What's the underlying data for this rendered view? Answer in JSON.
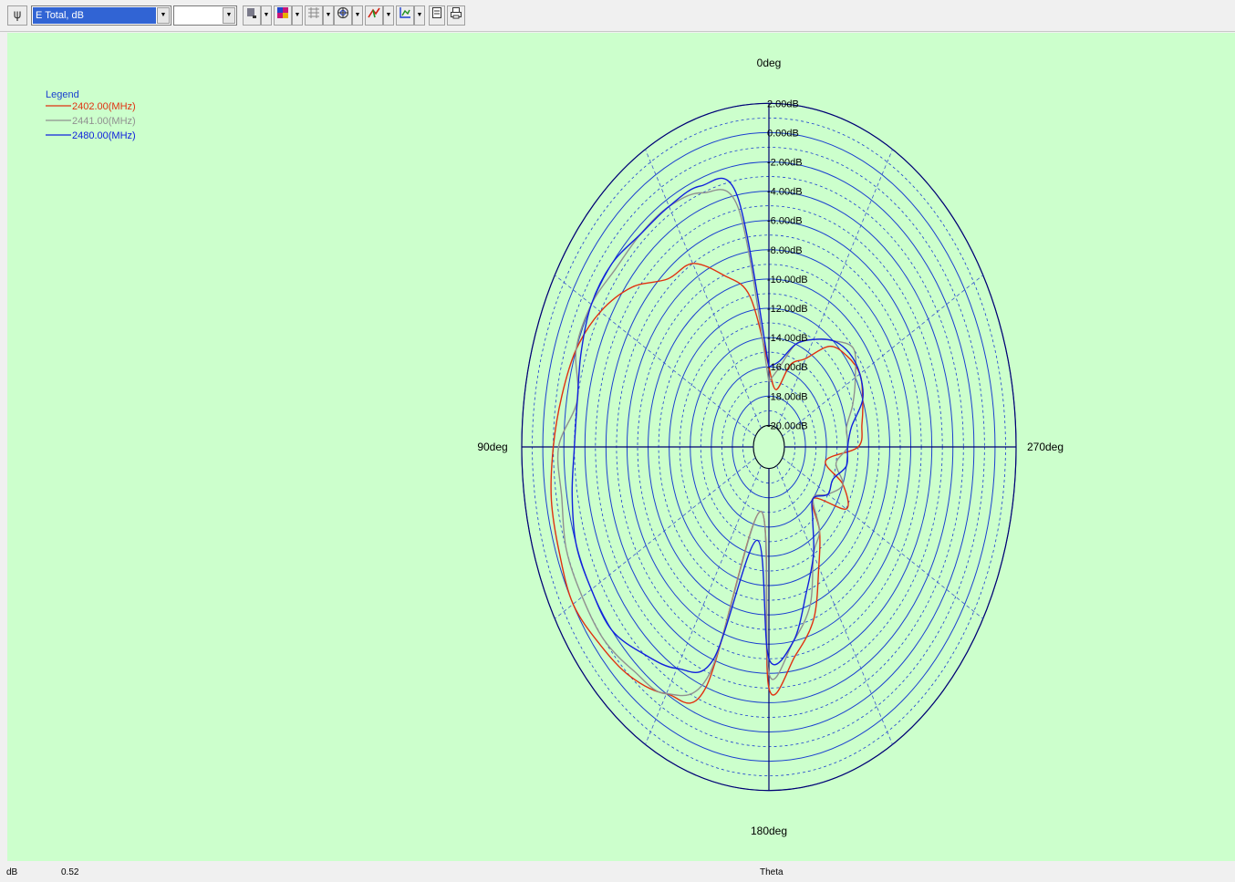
{
  "toolbar": {
    "quantity_select": {
      "value": "E Total, dB"
    },
    "secondary_select": {
      "value": ""
    },
    "buttons": [
      {
        "name": "plot-settings-icon"
      },
      {
        "name": "trace-style-icon"
      },
      {
        "name": "color-map-icon"
      },
      {
        "name": "grid-icon"
      },
      {
        "name": "polar-icon"
      },
      {
        "name": "marker-icon"
      },
      {
        "name": "axis-icon"
      },
      {
        "name": "copy-icon"
      },
      {
        "name": "print-icon"
      }
    ]
  },
  "statusbar": {
    "unit": "dB",
    "value": "0.52",
    "axis": "Theta"
  },
  "chart_data": {
    "type": "polar-line",
    "title": "",
    "radial_axis": {
      "unit": "dB",
      "range": [
        -20,
        2
      ],
      "tick_values": [
        2,
        0,
        -2,
        -4,
        -6,
        -8,
        -10,
        -12,
        -14,
        -16,
        -18,
        -20
      ],
      "tick_labels": [
        "2.00dB",
        "0.00dB",
        "-2.00dB",
        "-4.00dB",
        "-6.00dB",
        "-8.00dB",
        "-10.00dB",
        "-12.00dB",
        "-14.00dB",
        "-16.00dB",
        "-18.00dB",
        "-20.00dB"
      ]
    },
    "angular_axis": {
      "direction": "counterclockwise",
      "zero_at": "top",
      "labels": [
        {
          "deg": 0,
          "text": "0deg"
        },
        {
          "deg": 90,
          "text": "90deg"
        },
        {
          "deg": 180,
          "text": "180deg"
        },
        {
          "deg": 270,
          "text": "270deg"
        }
      ],
      "grid_spokes_every_deg": 30
    },
    "grid": true,
    "legend": {
      "title": "Legend",
      "position": "top-left"
    },
    "theta_deg": [
      0,
      10,
      20,
      30,
      40,
      50,
      60,
      70,
      80,
      90,
      100,
      110,
      120,
      130,
      140,
      150,
      160,
      170,
      180,
      190,
      200,
      210,
      220,
      230,
      240,
      250,
      260,
      270,
      280,
      290,
      300,
      310,
      320,
      330,
      340,
      350,
      360
    ],
    "series": [
      {
        "name": "2402.00(MHz)",
        "color": "#e03010",
        "r_db": [
          -16,
          -11,
          -9,
          -7,
          -6.5,
          -4.5,
          -3,
          -2,
          -1.5,
          -1,
          -0.5,
          -0.3,
          0,
          -0.5,
          -1,
          -2,
          -4,
          -17,
          -5,
          -7,
          -9,
          -12,
          -14,
          -16,
          -13,
          -14,
          -16,
          -13,
          -12.5,
          -12,
          -11.5,
          -11.8,
          -12.5,
          -14.5,
          -15.5,
          -17.5,
          -16
        ]
      },
      {
        "name": "2441.00(MHz)",
        "color": "#909090",
        "r_db": [
          -17,
          -5,
          -3,
          -2.5,
          -2.5,
          -2.5,
          -2,
          -2,
          -3,
          -1.5,
          -1.5,
          -1,
          -1,
          -1,
          -1.5,
          -2,
          -5,
          -17,
          -6,
          -8,
          -10,
          -13,
          -14,
          -16,
          -15,
          -14,
          -15,
          -14,
          -14,
          -13,
          -12,
          -11,
          -12,
          -13,
          -14,
          -16,
          -17
        ]
      },
      {
        "name": "2480.00(MHz)",
        "color": "#1020dd",
        "r_db": [
          -16,
          -4,
          -2.5,
          -2.5,
          -2.5,
          -2,
          -2,
          -2.5,
          -3,
          -3,
          -2.5,
          -2,
          -2,
          -2,
          -3,
          -4,
          -6,
          -15,
          -7,
          -8,
          -11,
          -13,
          -15,
          -16,
          -15,
          -15,
          -14,
          -14,
          -13.5,
          -12,
          -11.5,
          -11.5,
          -12,
          -13,
          -14,
          -15.5,
          -16
        ]
      }
    ],
    "colors": {
      "background": "#ccffcc",
      "circle": "#1a3fcf",
      "spoke": "#3a55cc",
      "axis": "#000070",
      "legend_title": "#1a3fcf"
    }
  }
}
